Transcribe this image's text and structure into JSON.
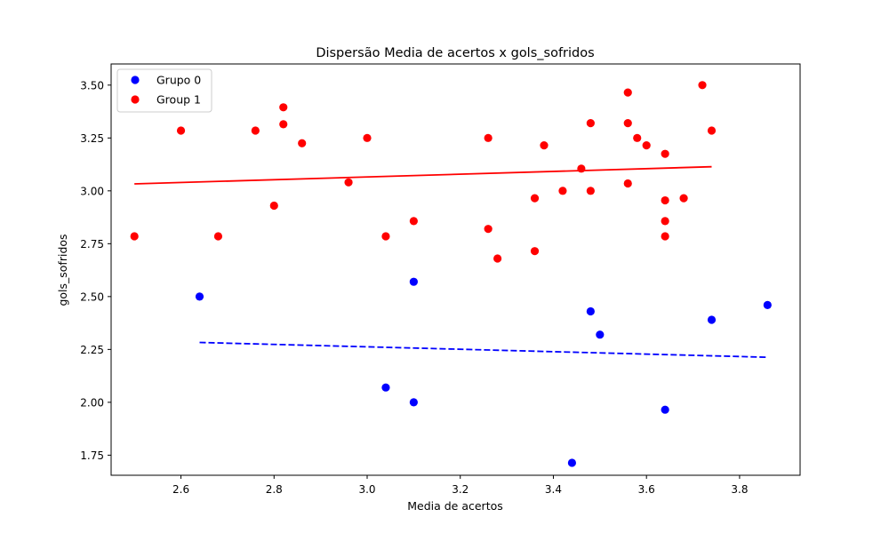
{
  "chart_data": {
    "type": "scatter",
    "title": "Dispersão Media de acertos x gols_sofridos",
    "xlabel": "Media de acertos",
    "ylabel": "gols_sofridos",
    "xlim": [
      2.45,
      3.93
    ],
    "ylim": [
      1.655,
      3.6
    ],
    "xticks": [
      2.6,
      2.8,
      3.0,
      3.2,
      3.4,
      3.6,
      3.8
    ],
    "xtick_labels": [
      "2.6",
      "2.8",
      "3.0",
      "3.2",
      "3.4",
      "3.6",
      "3.8"
    ],
    "yticks": [
      1.75,
      2.0,
      2.25,
      2.5,
      2.75,
      3.0,
      3.25,
      3.5
    ],
    "ytick_labels": [
      "1.75",
      "2.00",
      "2.25",
      "2.50",
      "2.75",
      "3.00",
      "3.25",
      "3.50"
    ],
    "grid": false,
    "legend_position": "top-left",
    "series": [
      {
        "name": "Grupo 0",
        "color": "#0000ff",
        "points": [
          [
            2.64,
            2.5
          ],
          [
            3.04,
            2.07
          ],
          [
            3.1,
            2.57
          ],
          [
            3.1,
            2.0
          ],
          [
            3.44,
            1.714
          ],
          [
            3.48,
            2.43
          ],
          [
            3.5,
            2.32
          ],
          [
            3.64,
            1.965
          ],
          [
            3.74,
            2.39
          ],
          [
            3.86,
            2.46
          ]
        ],
        "trend": {
          "x": [
            2.64,
            3.86
          ],
          "y": [
            2.283,
            2.213
          ],
          "style": "dashed"
        }
      },
      {
        "name": "Group 1",
        "color": "#ff0000",
        "points": [
          [
            2.5,
            2.785
          ],
          [
            2.6,
            3.285
          ],
          [
            2.68,
            2.785
          ],
          [
            2.76,
            3.285
          ],
          [
            2.8,
            2.93
          ],
          [
            2.82,
            3.395
          ],
          [
            2.82,
            3.315
          ],
          [
            2.86,
            3.225
          ],
          [
            2.96,
            3.04
          ],
          [
            3.0,
            3.25
          ],
          [
            3.04,
            2.785
          ],
          [
            3.1,
            2.857
          ],
          [
            3.26,
            3.25
          ],
          [
            3.26,
            2.82
          ],
          [
            3.28,
            2.68
          ],
          [
            3.36,
            2.965
          ],
          [
            3.36,
            2.715
          ],
          [
            3.38,
            3.215
          ],
          [
            3.42,
            3.0
          ],
          [
            3.46,
            3.105
          ],
          [
            3.48,
            3.32
          ],
          [
            3.48,
            3.0
          ],
          [
            3.56,
            3.465
          ],
          [
            3.56,
            3.32
          ],
          [
            3.56,
            3.035
          ],
          [
            3.58,
            3.25
          ],
          [
            3.6,
            3.215
          ],
          [
            3.64,
            3.175
          ],
          [
            3.64,
            2.955
          ],
          [
            3.64,
            2.857
          ],
          [
            3.64,
            2.785
          ],
          [
            3.68,
            2.965
          ],
          [
            3.72,
            3.5
          ],
          [
            3.74,
            3.285
          ]
        ],
        "trend": {
          "x": [
            2.5,
            3.74
          ],
          "y": [
            3.033,
            3.114
          ],
          "style": "solid"
        }
      }
    ]
  }
}
